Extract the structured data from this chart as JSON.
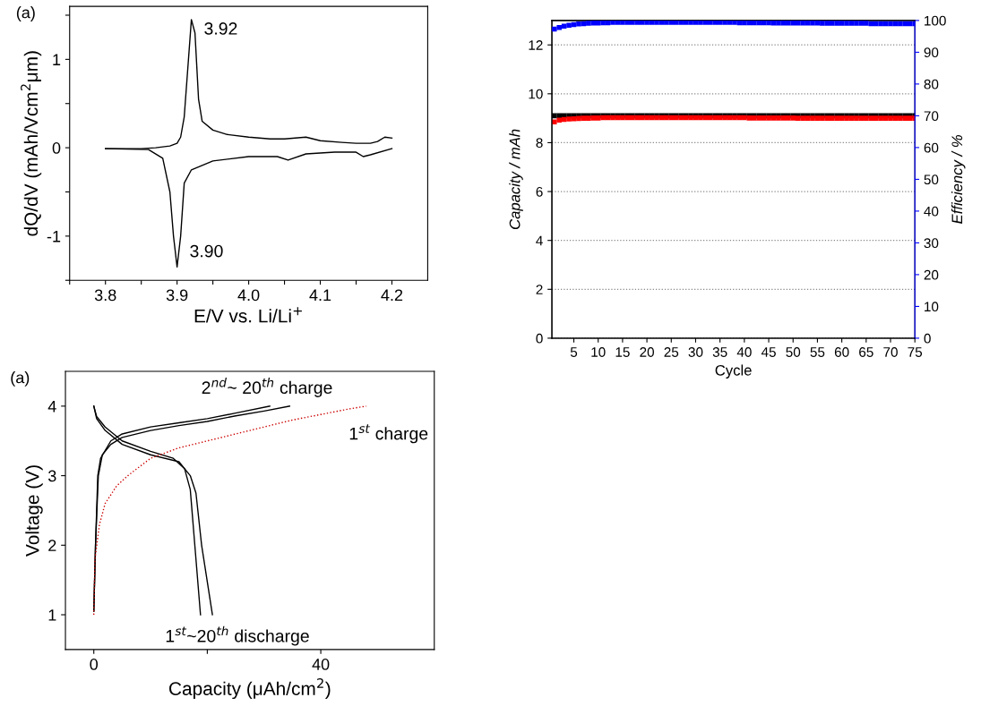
{
  "chart_data": [
    {
      "type": "line",
      "xlabel": "E/V vs. Li/Li$^{+}$",
      "ylabel": "dQ/dV (mAh/Vcm$^{2}$μm)",
      "xlim": [
        3.75,
        4.25
      ],
      "ylim": [
        -1.5,
        1.6
      ],
      "xticks": [
        {
          "value": 3.75,
          "label": null
        },
        3.8,
        {
          "value": 3.85,
          "label": null
        },
        3.9,
        {
          "value": 3.95,
          "label": null
        },
        {
          "value": 4.0,
          "label": "4.0"
        },
        {
          "value": 4.05,
          "label": null
        },
        4.1,
        {
          "value": 4.15,
          "label": null
        },
        4.2
      ],
      "yticks": [
        {
          "value": -1.5,
          "label": null
        },
        -1,
        {
          "value": -0.5,
          "label": null
        },
        0,
        {
          "value": 0.5,
          "label": null
        },
        1,
        {
          "value": 1.5,
          "label": null
        }
      ],
      "grid": false,
      "marker": "none",
      "line_style": "solid",
      "series": [
        {
          "color": "#000000",
          "x": [
            3.8,
            3.85,
            3.87,
            3.89,
            3.9,
            3.905,
            3.91,
            3.915,
            3.92,
            3.925,
            3.93,
            3.935,
            3.95,
            3.97,
            4.0,
            4.03,
            4.05,
            4.08,
            4.1,
            4.13,
            4.15,
            4.17,
            4.18,
            4.19,
            4.2
          ],
          "values": [
            -0.01,
            -0.01,
            0.0,
            0.02,
            0.05,
            0.12,
            0.35,
            0.9,
            1.45,
            1.3,
            0.55,
            0.3,
            0.2,
            0.15,
            0.12,
            0.1,
            0.1,
            0.12,
            0.08,
            0.06,
            0.05,
            0.05,
            0.07,
            0.12,
            0.11
          ]
        },
        {
          "color": "#000000",
          "x": [
            3.8,
            3.86,
            3.88,
            3.89,
            3.895,
            3.9,
            3.905,
            3.91,
            3.92,
            3.95,
            4.0,
            4.04,
            4.055,
            4.08,
            4.12,
            4.15,
            4.16,
            4.17,
            4.2
          ],
          "values": [
            -0.01,
            -0.02,
            -0.12,
            -0.5,
            -1.0,
            -1.35,
            -1.0,
            -0.4,
            -0.25,
            -0.15,
            -0.1,
            -0.1,
            -0.14,
            -0.07,
            -0.05,
            -0.05,
            -0.1,
            -0.08,
            -0.01
          ]
        }
      ],
      "annotations": [
        "(a)",
        {
          "text": "3.92",
          "x": 3.92,
          "y": 1.45
        },
        {
          "text": "3.90",
          "x": 3.9,
          "y": -1.35
        }
      ]
    },
    {
      "type": "scatter",
      "xlabel": "Cycle",
      "ylabel": "Capacity / mAh",
      "y2label": "Efficiency / %",
      "xlim": [
        0.5,
        75
      ],
      "ylim": [
        0,
        13
      ],
      "y2lim": [
        0,
        100
      ],
      "xticks": [
        5,
        10,
        15,
        20,
        25,
        30,
        35,
        40,
        45,
        50,
        55,
        60,
        65,
        70,
        75
      ],
      "yticks": [
        0,
        2,
        4,
        6,
        8,
        10,
        12
      ],
      "y2ticks": [
        0,
        10,
        20,
        30,
        40,
        50,
        60,
        70,
        80,
        90,
        100
      ],
      "grid": "y",
      "marker": "square",
      "x": [
        1,
        2,
        3,
        4,
        5,
        6,
        7,
        8,
        9,
        10,
        11,
        12,
        13,
        14,
        15,
        16,
        17,
        18,
        19,
        20,
        21,
        22,
        23,
        24,
        25,
        26,
        27,
        28,
        29,
        30,
        31,
        32,
        33,
        34,
        35,
        36,
        37,
        38,
        39,
        40,
        41,
        42,
        43,
        44,
        45,
        46,
        47,
        48,
        49,
        50,
        51,
        52,
        53,
        54,
        55,
        56,
        57,
        58,
        59,
        60,
        61,
        62,
        63,
        64,
        65,
        66,
        67,
        68,
        69,
        70,
        71,
        72,
        73,
        74,
        75
      ],
      "series": [
        {
          "color": "#000000",
          "values": [
            9.1,
            9.1,
            9.1,
            9.1,
            9.1,
            9.1,
            9.1,
            9.1,
            9.1,
            9.1,
            9.1,
            9.1,
            9.1,
            9.1,
            9.1,
            9.1,
            9.1,
            9.1,
            9.1,
            9.1,
            9.1,
            9.1,
            9.1,
            9.1,
            9.1,
            9.1,
            9.1,
            9.1,
            9.1,
            9.1,
            9.1,
            9.1,
            9.1,
            9.1,
            9.1,
            9.1,
            9.1,
            9.1,
            9.1,
            9.1,
            9.1,
            9.1,
            9.1,
            9.1,
            9.1,
            9.1,
            9.1,
            9.1,
            9.1,
            9.1,
            9.1,
            9.1,
            9.1,
            9.1,
            9.1,
            9.1,
            9.1,
            9.1,
            9.1,
            9.1,
            9.1,
            9.1,
            9.1,
            9.1,
            9.1,
            9.1,
            9.1,
            9.1,
            9.1,
            9.1,
            9.1,
            9.1,
            9.1,
            9.1,
            9.1
          ]
        },
        {
          "color": "#ff0000",
          "values": [
            8.85,
            8.92,
            8.95,
            8.97,
            8.98,
            8.99,
            9.0,
            9.0,
            9.01,
            9.01,
            9.02,
            9.02,
            9.02,
            9.02,
            9.02,
            9.02,
            9.02,
            9.02,
            9.02,
            9.02,
            9.02,
            9.02,
            9.02,
            9.02,
            9.02,
            9.02,
            9.02,
            9.02,
            9.02,
            9.02,
            9.02,
            9.02,
            9.02,
            9.02,
            9.02,
            9.02,
            9.02,
            9.02,
            9.02,
            9.02,
            9.01,
            9.01,
            9.01,
            9.01,
            9.01,
            9.01,
            9.01,
            9.01,
            9.01,
            9.01,
            9.0,
            9.0,
            9.0,
            9.0,
            9.0,
            9.0,
            9.0,
            9.0,
            9.0,
            9.0,
            9.0,
            9.0,
            9.0,
            9.0,
            9.0,
            9.0,
            9.0,
            9.0,
            9.0,
            9.0,
            9.0,
            9.0,
            9.0,
            9.0,
            9.0
          ]
        },
        {
          "color": "#0000ff",
          "axis": "y2",
          "values": [
            97.3,
            97.8,
            98.2,
            98.5,
            98.7,
            98.9,
            99.0,
            99.1,
            99.2,
            99.2,
            99.3,
            99.3,
            99.4,
            99.4,
            99.4,
            99.4,
            99.4,
            99.4,
            99.4,
            99.4,
            99.4,
            99.4,
            99.4,
            99.4,
            99.4,
            99.4,
            99.4,
            99.4,
            99.4,
            99.4,
            99.4,
            99.4,
            99.4,
            99.4,
            99.4,
            99.4,
            99.4,
            99.4,
            99.3,
            99.3,
            99.3,
            99.3,
            99.3,
            99.3,
            99.3,
            99.2,
            99.2,
            99.2,
            99.2,
            99.2,
            99.2,
            99.2,
            99.2,
            99.2,
            99.2,
            99.1,
            99.1,
            99.1,
            99.1,
            99.1,
            99.1,
            99.1,
            99.1,
            99.1,
            99.1,
            99.0,
            99.0,
            99.0,
            99.0,
            99.0,
            99.0,
            99.0,
            99.0,
            99.0,
            99.0
          ]
        }
      ]
    },
    {
      "type": "line",
      "xlabel": "Capacity (μAh/cm$^{2}$)",
      "ylabel": "Voltage (V)",
      "xlim": [
        -5,
        60
      ],
      "ylim": [
        0.5,
        4.5
      ],
      "xticks": [
        0,
        {
          "value": 20,
          "label": null
        },
        40
      ],
      "yticks": [
        1,
        2,
        3,
        4
      ],
      "grid": false,
      "marker": "none",
      "series": [
        {
          "color": "#000000",
          "line_style": "solid",
          "x": [
            0,
            0.3,
            0.8,
            1.5,
            3,
            5,
            10,
            15,
            20,
            25,
            30,
            34.5
          ],
          "values": [
            1.05,
            2.0,
            3.0,
            3.3,
            3.45,
            3.55,
            3.65,
            3.72,
            3.78,
            3.86,
            3.93,
            4.0
          ]
        },
        {
          "color": "#000000",
          "line_style": "solid",
          "x": [
            0,
            0.3,
            0.7,
            1.2,
            3,
            5,
            10,
            15,
            20,
            25,
            31
          ],
          "values": [
            1.05,
            2.0,
            3.0,
            3.25,
            3.5,
            3.6,
            3.7,
            3.76,
            3.82,
            3.9,
            4.0
          ]
        },
        {
          "color": "#000000",
          "line_style": "solid",
          "x": [
            0,
            0.5,
            2,
            5,
            10,
            14,
            16,
            17,
            17.8,
            18.8
          ],
          "values": [
            4.0,
            3.85,
            3.7,
            3.5,
            3.35,
            3.25,
            3.1,
            2.8,
            2.0,
            1.0
          ]
        },
        {
          "color": "#000000",
          "line_style": "solid",
          "x": [
            0,
            0.5,
            2,
            5,
            10,
            15,
            17,
            18,
            19,
            20.9
          ],
          "values": [
            4.0,
            3.82,
            3.65,
            3.45,
            3.3,
            3.2,
            3.0,
            2.75,
            2.0,
            1.0
          ]
        },
        {
          "color": "#cc0000",
          "line_style": "dotted",
          "x": [
            0,
            0.2,
            1,
            2,
            4,
            6,
            10,
            15,
            20,
            25,
            30,
            35,
            40,
            45,
            48
          ],
          "values": [
            1.0,
            1.8,
            2.3,
            2.6,
            2.85,
            3.0,
            3.25,
            3.4,
            3.5,
            3.6,
            3.7,
            3.8,
            3.88,
            3.96,
            4.0
          ]
        }
      ],
      "annotations": [
        "(a)",
        {
          "text": "2$^{nd}$~ 20$^{th}$ charge",
          "x": 31,
          "y": 4.0
        },
        {
          "text": "1$^{st}$ charge",
          "x": 48,
          "y": 4.0
        },
        {
          "text": "1$^{st}$~20$^{th}$ discharge",
          "x": 20.9,
          "y": 1.0
        }
      ]
    }
  ]
}
